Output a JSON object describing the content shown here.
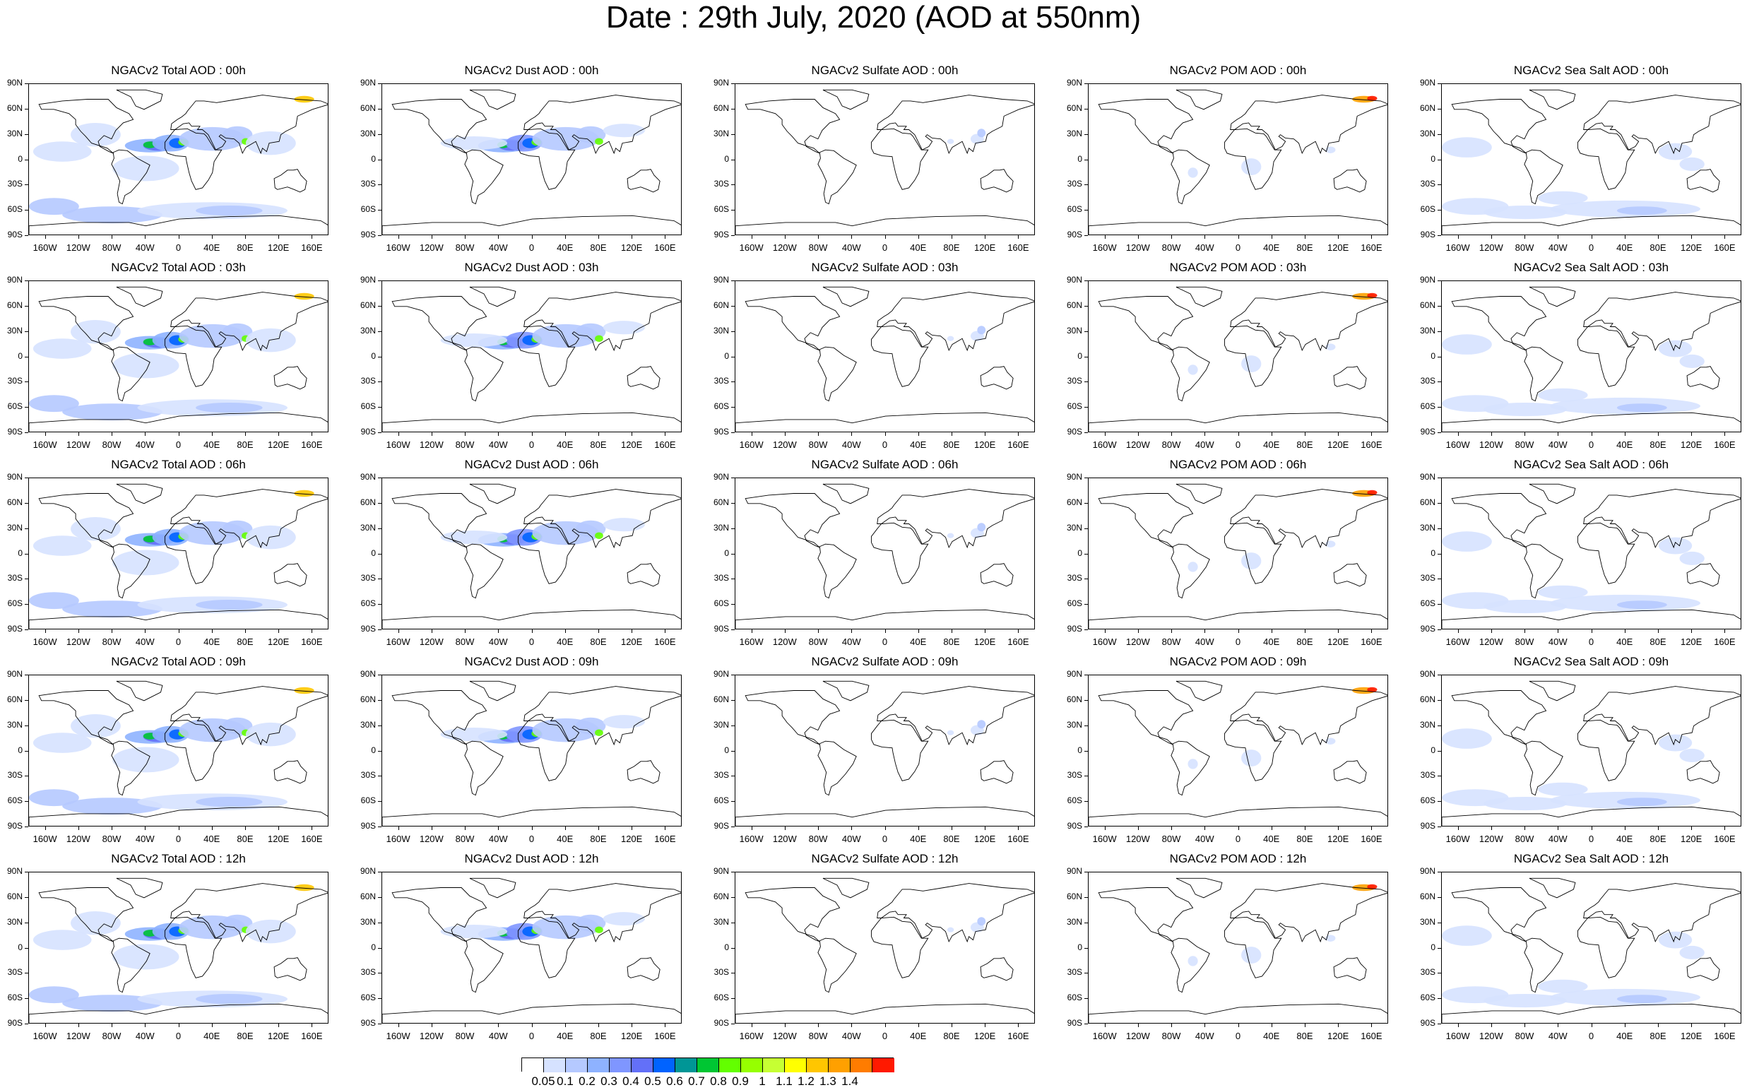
{
  "page": {
    "title": "Date : 29th July, 2020 (AOD at 550nm)"
  },
  "axes": {
    "lat_labels": [
      "90N",
      "60N",
      "30N",
      "0",
      "30S",
      "60S",
      "90S"
    ],
    "lon_labels": [
      "160W",
      "120W",
      "80W",
      "40W",
      "0",
      "40E",
      "80E",
      "120E",
      "160E"
    ],
    "lat_values": [
      90,
      60,
      30,
      0,
      -30,
      -60,
      -90
    ],
    "lon_values": [
      -160,
      -120,
      -80,
      -40,
      0,
      40,
      80,
      120,
      160
    ],
    "lon_range": [
      -180,
      180
    ],
    "lat_range": [
      -90,
      90
    ]
  },
  "panels": [
    {
      "title": "NGACv2 Total AOD : 00h",
      "species": "total"
    },
    {
      "title": "NGACv2 Dust AOD : 00h",
      "species": "dust"
    },
    {
      "title": "NGACv2 Sulfate AOD : 00h",
      "species": "sulfate"
    },
    {
      "title": "NGACv2 POM AOD : 00h",
      "species": "pom"
    },
    {
      "title": "NGACv2 Sea Salt AOD : 00h",
      "species": "seasalt"
    },
    {
      "title": "NGACv2 Total AOD : 03h",
      "species": "total"
    },
    {
      "title": "NGACv2 Dust AOD : 03h",
      "species": "dust"
    },
    {
      "title": "NGACv2 Sulfate AOD : 03h",
      "species": "sulfate"
    },
    {
      "title": "NGACv2 POM AOD : 03h",
      "species": "pom"
    },
    {
      "title": "NGACv2 Sea Salt AOD : 03h",
      "species": "seasalt"
    },
    {
      "title": "NGACv2 Total AOD : 06h",
      "species": "total"
    },
    {
      "title": "NGACv2 Dust AOD : 06h",
      "species": "dust"
    },
    {
      "title": "NGACv2 Sulfate AOD : 06h",
      "species": "sulfate"
    },
    {
      "title": "NGACv2 POM AOD : 06h",
      "species": "pom"
    },
    {
      "title": "NGACv2 Sea Salt AOD : 06h",
      "species": "seasalt"
    },
    {
      "title": "NGACv2 Total AOD : 09h",
      "species": "total"
    },
    {
      "title": "NGACv2 Dust AOD : 09h",
      "species": "dust"
    },
    {
      "title": "NGACv2 Sulfate AOD : 09h",
      "species": "sulfate"
    },
    {
      "title": "NGACv2 POM AOD : 09h",
      "species": "pom"
    },
    {
      "title": "NGACv2 Sea Salt  AOD : 09h",
      "species": "seasalt"
    },
    {
      "title": "NGACv2 Total AOD  : 12h",
      "species": "total"
    },
    {
      "title": "NGACv2 Dust AOD : 12h",
      "species": "dust"
    },
    {
      "title": "NGACv2 Sulfate AOD : 12h",
      "species": "sulfate"
    },
    {
      "title": "NGACv2 POM  AOD : 12h",
      "species": "pom"
    },
    {
      "title": "NGACv2 Sea Salt AOD : 12h",
      "species": "seasalt"
    }
  ],
  "colorbar": {
    "labels": [
      "0.05",
      "0.1",
      "0.2",
      "0.3",
      "0.4",
      "0.5",
      "0.6",
      "0.7",
      "0.8",
      "0.9",
      "1",
      "1.1",
      "1.2",
      "1.3",
      "1.4"
    ],
    "colors": [
      "#ffffff",
      "#d6e2ff",
      "#b5c9ff",
      "#8eb2ff",
      "#7f96ff",
      "#6370f8",
      "#0063ff",
      "#009696",
      "#00c633",
      "#63ff00",
      "#96ff00",
      "#c6ff33",
      "#ffff00",
      "#ffc600",
      "#ffa000",
      "#ff7c00",
      "#ff1900"
    ]
  }
}
